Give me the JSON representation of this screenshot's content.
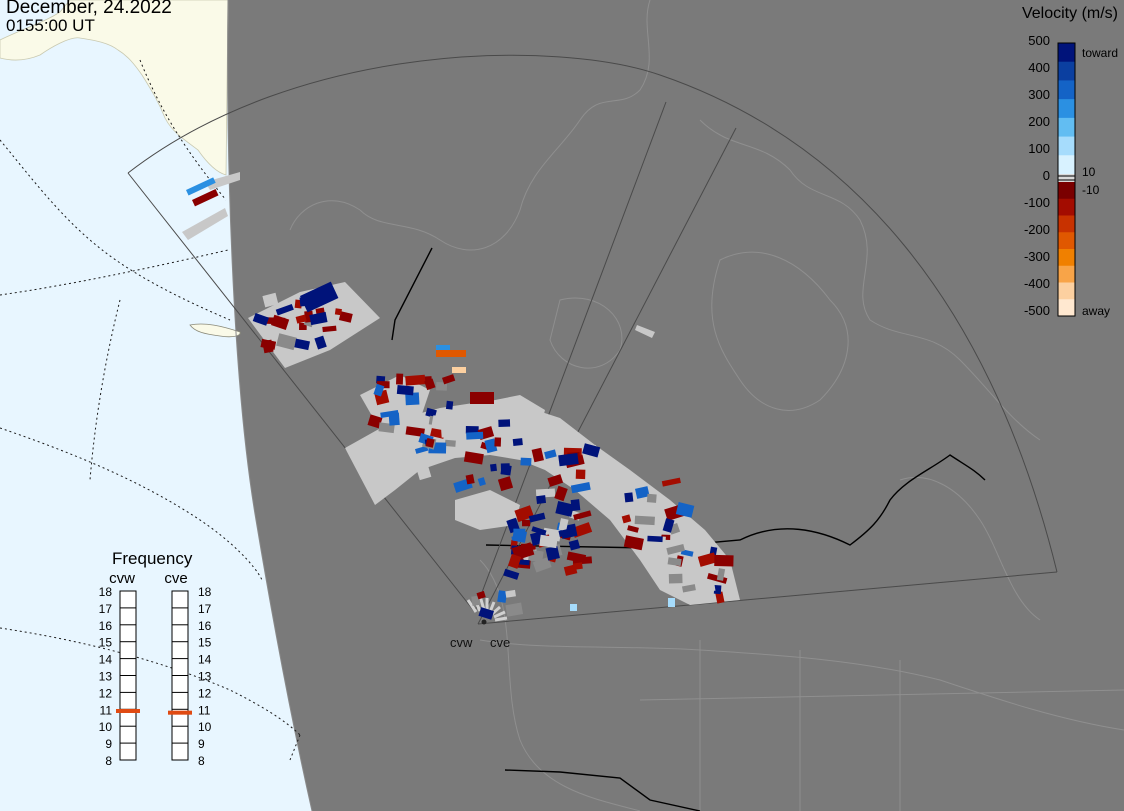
{
  "header": {
    "date": "December, 24.2022",
    "time": "0155:00 UT"
  },
  "velocity_legend": {
    "title": "Velocity (m/s)",
    "ticks": [
      "500",
      "400",
      "300",
      "200",
      "100",
      "0",
      "-100",
      "-200",
      "-300",
      "-400",
      "-500"
    ],
    "upper_right_labels": [
      "toward",
      "10"
    ],
    "lower_right_labels": [
      "-10",
      "away"
    ],
    "toward_colors": [
      "#d8f2ff",
      "#a6dcfc",
      "#62bdf2",
      "#2b90e2",
      "#1463c6",
      "#0b3fa0",
      "#00137a"
    ],
    "away_colors": [
      "#7a0000",
      "#a30c00",
      "#c83200",
      "#e05800",
      "#f08000",
      "#f8a448",
      "#fcd0a0",
      "#ffe8d0"
    ],
    "neutral_color": "#d9d9d9"
  },
  "frequency_panel": {
    "title": "Frequency",
    "radars": [
      {
        "name": "cvw",
        "frequency_mhz": 10.9
      },
      {
        "name": "cve",
        "frequency_mhz": 10.8
      }
    ],
    "scale": [
      "18",
      "17",
      "16",
      "15",
      "14",
      "13",
      "12",
      "11",
      "10",
      "9",
      "8"
    ],
    "marker_color": "#e04a12"
  },
  "map": {
    "night_color": "#7a7a7a",
    "day_color": "#e8f6ff",
    "land_day_color": "#fafae8",
    "radar_site_labels": [
      "cvw",
      "cve"
    ],
    "echo_colors": {
      "ground_scatter": "#c8c8c8",
      "toward_strong": "#00137a",
      "away_strong": "#8a0000"
    }
  }
}
